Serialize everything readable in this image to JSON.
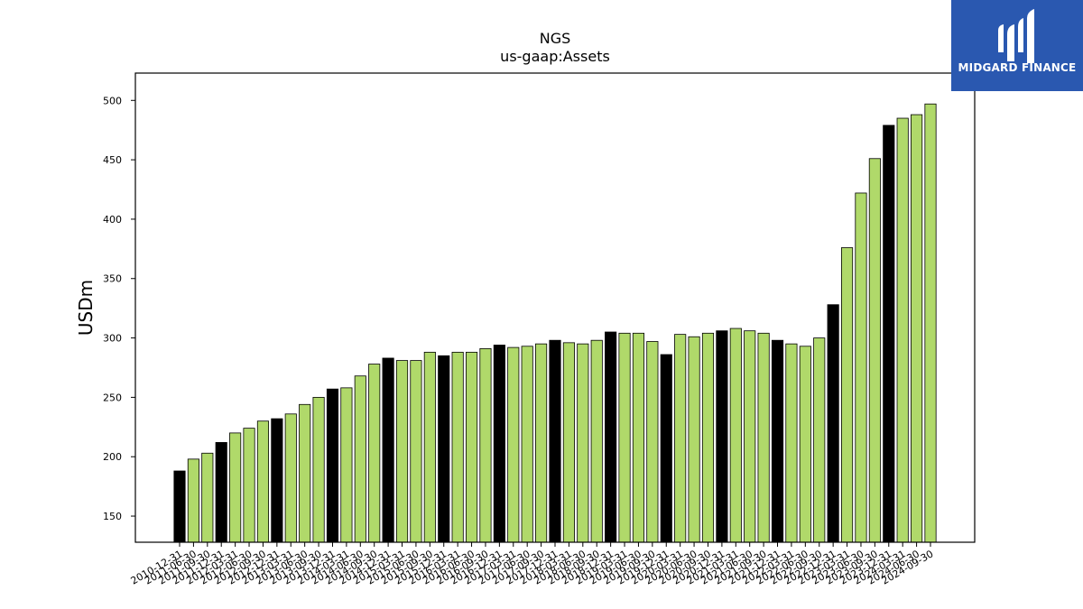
{
  "logo": {
    "text": "MIDGARD FINANCE",
    "background": "#2a58b0"
  },
  "chart_data": {
    "type": "bar",
    "title": "NGS",
    "subtitle": "us-gaap:Assets",
    "xlabel": "",
    "ylabel": "USDm",
    "ylim": [
      128,
      523
    ],
    "yticks": [
      150,
      200,
      250,
      300,
      350,
      400,
      450,
      500
    ],
    "grid": false,
    "colors": {
      "q4": "#000000",
      "quarter": "#b0d96a",
      "edge": "#000000"
    },
    "categories": [
      "2010-12-31",
      "2011-06-30",
      "2011-09-30",
      "2011-12-31",
      "2012-03-31",
      "2012-06-30",
      "2012-09-30",
      "2012-12-31",
      "2013-03-31",
      "2013-06-30",
      "2013-09-30",
      "2013-12-31",
      "2014-03-31",
      "2014-06-30",
      "2014-09-30",
      "2014-12-31",
      "2015-03-31",
      "2015-06-30",
      "2015-09-30",
      "2015-12-31",
      "2016-03-31",
      "2016-06-30",
      "2016-09-30",
      "2016-12-31",
      "2017-03-31",
      "2017-06-30",
      "2017-09-30",
      "2017-12-31",
      "2018-03-31",
      "2018-06-30",
      "2018-09-30",
      "2018-12-31",
      "2019-03-31",
      "2019-06-30",
      "2019-09-30",
      "2019-12-31",
      "2020-03-31",
      "2020-06-30",
      "2020-09-30",
      "2020-12-31",
      "2021-03-31",
      "2021-06-30",
      "2021-09-30",
      "2021-12-31",
      "2022-03-31",
      "2022-06-30",
      "2022-09-30",
      "2022-12-31",
      "2023-03-31",
      "2023-06-30",
      "2023-09-30",
      "2023-12-31",
      "2024-03-31",
      "2024-06-30",
      "2024-09-30"
    ],
    "values": [
      188,
      198,
      203,
      212,
      220,
      224,
      230,
      232,
      236,
      244,
      250,
      257,
      258,
      268,
      278,
      283,
      281,
      281,
      288,
      285,
      288,
      288,
      291,
      294,
      292,
      293,
      295,
      298,
      296,
      295,
      298,
      305,
      304,
      304,
      297,
      286,
      303,
      301,
      304,
      306,
      308,
      306,
      304,
      298,
      295,
      293,
      300,
      328,
      376,
      422,
      451,
      479,
      485,
      488,
      497
    ]
  }
}
